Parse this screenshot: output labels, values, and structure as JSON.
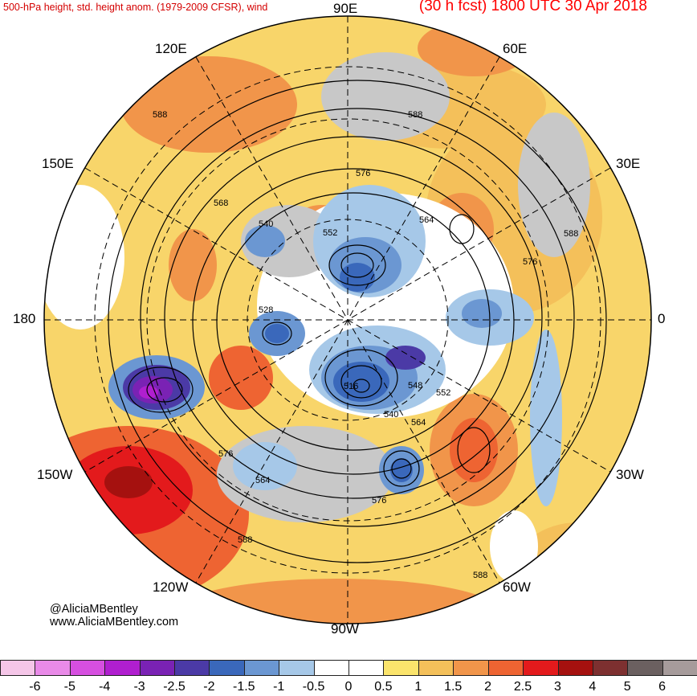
{
  "header": {
    "left_title": "500-hPa height, std. height anom. (1979-2009 CFSR), wind",
    "right_title": "(30 h fcst) 1800 UTC 30 Apr 2018"
  },
  "lon_labels": {
    "l90e": "90E",
    "l60e": "60E",
    "l120e": "120E",
    "l150e": "150E",
    "l30e": "30E",
    "l180": "180",
    "l0": "0",
    "l150w": "150W",
    "l30w": "30W",
    "l120w": "120W",
    "l60w": "60W",
    "l90w": "90W"
  },
  "contour_labels": [
    "588",
    "588",
    "568",
    "540",
    "552",
    "576",
    "564",
    "588",
    "576",
    "528",
    "516",
    "548",
    "552",
    "540",
    "564",
    "576",
    "564",
    "576",
    "588",
    "588"
  ],
  "credit": {
    "line1": "@AliciaMBentley",
    "line2": "www.AliciaMBentley.com"
  },
  "colorbar": {
    "colors": [
      "#f5c6e8",
      "#e98ae8",
      "#d64fe0",
      "#b01fcf",
      "#7a22b4",
      "#4b3aa6",
      "#3a68bb",
      "#6b97d2",
      "#a6c8e8",
      "#ffffff",
      "#ffffff",
      "#fbe46c",
      "#f4c05a",
      "#f1954a",
      "#ee6432",
      "#e31a1c",
      "#a5110f",
      "#7d3030",
      "#6b6060",
      "#a69b9b"
    ],
    "ticks": [
      "-6",
      "-5",
      "-4",
      "-3",
      "-2.5",
      "-2",
      "-1.5",
      "-1",
      "-0.5",
      "0",
      "0.5",
      "1",
      "1.5",
      "2",
      "2.5",
      "3",
      "4",
      "5",
      "6"
    ]
  }
}
